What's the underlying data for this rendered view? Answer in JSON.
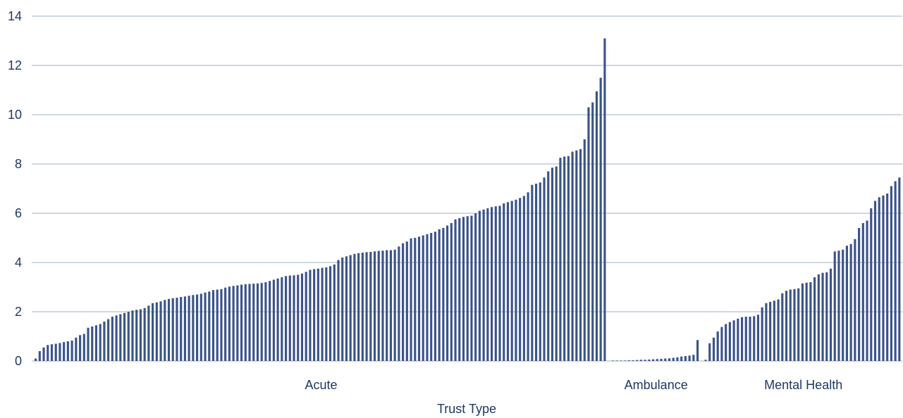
{
  "chart_data": {
    "type": "bar",
    "title": "",
    "xlabel": "Trust Type",
    "ylabel": "",
    "ylim": [
      0,
      14
    ],
    "yticks": [
      0,
      2,
      4,
      6,
      8,
      10,
      12,
      14
    ],
    "grid": true,
    "bar_color": "#3b5488",
    "grid_color": "#9fb0c8",
    "text_color": "#1f3864",
    "groups": [
      {
        "name": "Acute",
        "values": [
          0.1,
          0.4,
          0.55,
          0.65,
          0.68,
          0.7,
          0.73,
          0.77,
          0.8,
          0.83,
          0.95,
          1.05,
          1.1,
          1.35,
          1.4,
          1.45,
          1.5,
          1.6,
          1.7,
          1.8,
          1.85,
          1.9,
          1.95,
          2.0,
          2.05,
          2.08,
          2.1,
          2.15,
          2.25,
          2.35,
          2.38,
          2.42,
          2.48,
          2.52,
          2.55,
          2.57,
          2.6,
          2.62,
          2.65,
          2.68,
          2.7,
          2.73,
          2.78,
          2.82,
          2.88,
          2.9,
          2.92,
          2.98,
          3.02,
          3.05,
          3.07,
          3.1,
          3.12,
          3.13,
          3.14,
          3.15,
          3.17,
          3.2,
          3.25,
          3.3,
          3.35,
          3.4,
          3.45,
          3.47,
          3.48,
          3.5,
          3.55,
          3.62,
          3.7,
          3.73,
          3.75,
          3.78,
          3.8,
          3.85,
          3.92,
          4.1,
          4.2,
          4.25,
          4.3,
          4.35,
          4.38,
          4.4,
          4.42,
          4.43,
          4.45,
          4.47,
          4.48,
          4.5,
          4.5,
          4.52,
          4.65,
          4.78,
          4.85,
          4.98,
          5.0,
          5.05,
          5.1,
          5.15,
          5.2,
          5.25,
          5.35,
          5.4,
          5.5,
          5.6,
          5.75,
          5.8,
          5.85,
          5.88,
          5.9,
          6.0,
          6.1,
          6.15,
          6.2,
          6.25,
          6.28,
          6.3,
          6.4,
          6.45,
          6.5,
          6.55,
          6.62,
          6.7,
          6.85,
          7.15,
          7.2,
          7.25,
          7.45,
          7.7,
          7.85,
          7.9,
          8.25,
          8.3,
          8.32,
          8.5,
          8.55,
          8.6,
          9.0,
          10.3,
          10.5,
          10.95,
          11.5,
          13.1
        ]
      },
      {
        "name": "Ambulance",
        "values": [
          0.02,
          0.02,
          0.02,
          0.02,
          0.03,
          0.03,
          0.04,
          0.05,
          0.05,
          0.06,
          0.07,
          0.08,
          0.09,
          0.1,
          0.11,
          0.13,
          0.15,
          0.18,
          0.2,
          0.22,
          0.25,
          0.85
        ]
      },
      {
        "name": "Mental Health",
        "values": [
          0.05,
          0.72,
          0.95,
          1.2,
          1.38,
          1.5,
          1.58,
          1.65,
          1.72,
          1.78,
          1.8,
          1.8,
          1.82,
          1.88,
          2.18,
          2.35,
          2.4,
          2.45,
          2.5,
          2.75,
          2.85,
          2.9,
          2.92,
          2.95,
          3.15,
          3.18,
          3.2,
          3.4,
          3.52,
          3.58,
          3.6,
          3.75,
          4.45,
          4.48,
          4.52,
          4.68,
          4.75,
          4.95,
          5.4,
          5.6,
          5.7,
          6.2,
          6.5,
          6.65,
          6.72,
          6.8,
          7.1,
          7.3,
          7.45
        ]
      }
    ]
  }
}
